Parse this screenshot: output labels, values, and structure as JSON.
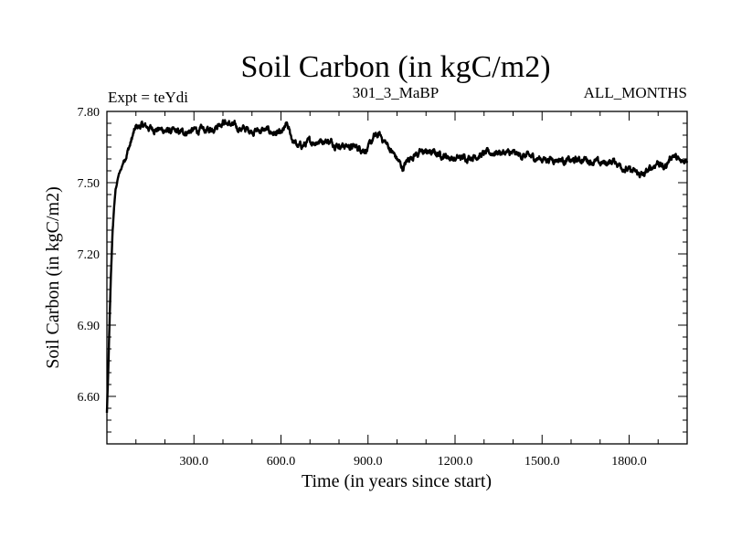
{
  "chart_data": {
    "type": "line",
    "title": "Soil Carbon (in kgC/m2)",
    "subtitle_left": "Expt = teYdi",
    "subtitle_center": "301_3_MaBP",
    "subtitle_right": "ALL_MONTHS",
    "xlabel": "Time (in years since start)",
    "ylabel": "Soil Carbon (in kgC/m2)",
    "xlim": [
      0,
      2000
    ],
    "ylim": [
      6.4,
      7.8
    ],
    "x_ticks": [
      300,
      600,
      900,
      1200,
      1500,
      1800
    ],
    "x_tick_labels": [
      "300.0",
      "600.0",
      "900.0",
      "1200.0",
      "1500.0",
      "1800.0"
    ],
    "y_ticks": [
      6.6,
      6.9,
      7.2,
      7.5,
      7.8
    ],
    "y_tick_labels": [
      "6.60",
      "6.90",
      "7.20",
      "7.50",
      "7.80"
    ],
    "line_color": "#000000",
    "series": [
      {
        "name": "Soil Carbon",
        "x": [
          0,
          5,
          10,
          15,
          20,
          25,
          30,
          40,
          50,
          60,
          70,
          80,
          90,
          100,
          120,
          150,
          200,
          250,
          300,
          350,
          400,
          450,
          500,
          550,
          600,
          620,
          640,
          660,
          700,
          750,
          800,
          850,
          900,
          920,
          940,
          960,
          1000,
          1020,
          1040,
          1060,
          1100,
          1150,
          1200,
          1250,
          1300,
          1350,
          1400,
          1450,
          1500,
          1550,
          1600,
          1650,
          1700,
          1750,
          1800,
          1850,
          1900,
          1920,
          1950,
          1980,
          2000
        ],
        "values": [
          6.53,
          6.72,
          6.95,
          7.15,
          7.3,
          7.4,
          7.47,
          7.53,
          7.56,
          7.6,
          7.63,
          7.66,
          7.7,
          7.73,
          7.74,
          7.73,
          7.72,
          7.71,
          7.72,
          7.72,
          7.76,
          7.73,
          7.72,
          7.72,
          7.7,
          7.74,
          7.68,
          7.65,
          7.67,
          7.68,
          7.66,
          7.65,
          7.64,
          7.69,
          7.7,
          7.67,
          7.6,
          7.56,
          7.6,
          7.62,
          7.63,
          7.62,
          7.6,
          7.61,
          7.62,
          7.63,
          7.62,
          7.61,
          7.6,
          7.6,
          7.59,
          7.6,
          7.58,
          7.59,
          7.55,
          7.53,
          7.59,
          7.56,
          7.62,
          7.58,
          7.6
        ]
      }
    ]
  }
}
